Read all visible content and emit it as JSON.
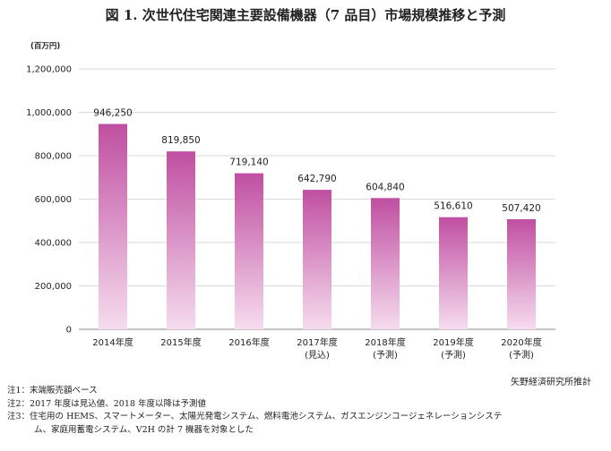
{
  "title": "図 1. 次世代住宅関連主要設備機器（7 品目）市場規模推移と予測",
  "chart_data": {
    "type": "bar",
    "unit_label": "(百万円)",
    "categories": [
      [
        "2014年度"
      ],
      [
        "2015年度"
      ],
      [
        "2016年度"
      ],
      [
        "2017年度",
        "(見込)"
      ],
      [
        "2018年度",
        "(予測)"
      ],
      [
        "2019年度",
        "(予測)"
      ],
      [
        "2020年度",
        "(予測)"
      ]
    ],
    "values": [
      946250,
      819850,
      719140,
      642790,
      604840,
      516610,
      507420
    ],
    "data_labels": [
      "946,250",
      "819,850",
      "719,140",
      "642,790",
      "604,840",
      "516,610",
      "507,420"
    ],
    "ylim": [
      0,
      1200000
    ],
    "yticks": [
      0,
      200000,
      400000,
      600000,
      800000,
      1000000,
      1200000
    ],
    "ytick_labels": [
      "0",
      "200,000",
      "400,000",
      "600,000",
      "800,000",
      "1,000,000",
      "1,200,000"
    ],
    "grid": true,
    "bar_color_top": "#c04fa2",
    "bar_color_bottom": "#f6dcee"
  },
  "credit": "矢野経済研究所推計",
  "notes": [
    "注1：末端販売額ベース",
    "注2：2017 年度は見込値、2018 年度以降は予測値",
    "注3：住宅用の HEMS、スマートメーター、太陽光発電システム、燃料電池システム、ガスエンジンコージェネレーションシステ",
    "ム、家庭用蓄電システム、V2H の計 7 機器を対象とした"
  ]
}
